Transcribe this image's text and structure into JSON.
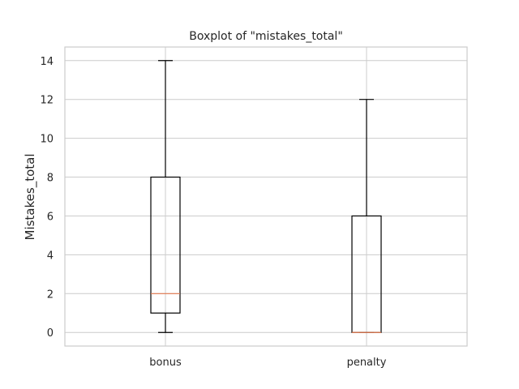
{
  "chart_data": {
    "type": "boxplot",
    "title": "Boxplot of \"mistakes_total\"",
    "xlabel": "",
    "ylabel": "Mistakes_total",
    "categories": [
      "bonus",
      "penalty"
    ],
    "series": [
      {
        "category": "bonus",
        "whisker_low": 0,
        "q1": 1,
        "median": 2,
        "q3": 8,
        "whisker_high": 14
      },
      {
        "category": "penalty",
        "whisker_low": 0,
        "q1": 0,
        "median": 0,
        "q3": 6,
        "whisker_high": 12
      }
    ],
    "ylim": [
      -0.7,
      14.7
    ],
    "yticks": [
      0,
      2,
      4,
      6,
      8,
      10,
      12,
      14
    ],
    "grid": true,
    "colors": {
      "box": "#000000",
      "median": "#e2794f",
      "grid": "#cccccc",
      "frame": "#cccccc",
      "text": "#262626"
    }
  }
}
